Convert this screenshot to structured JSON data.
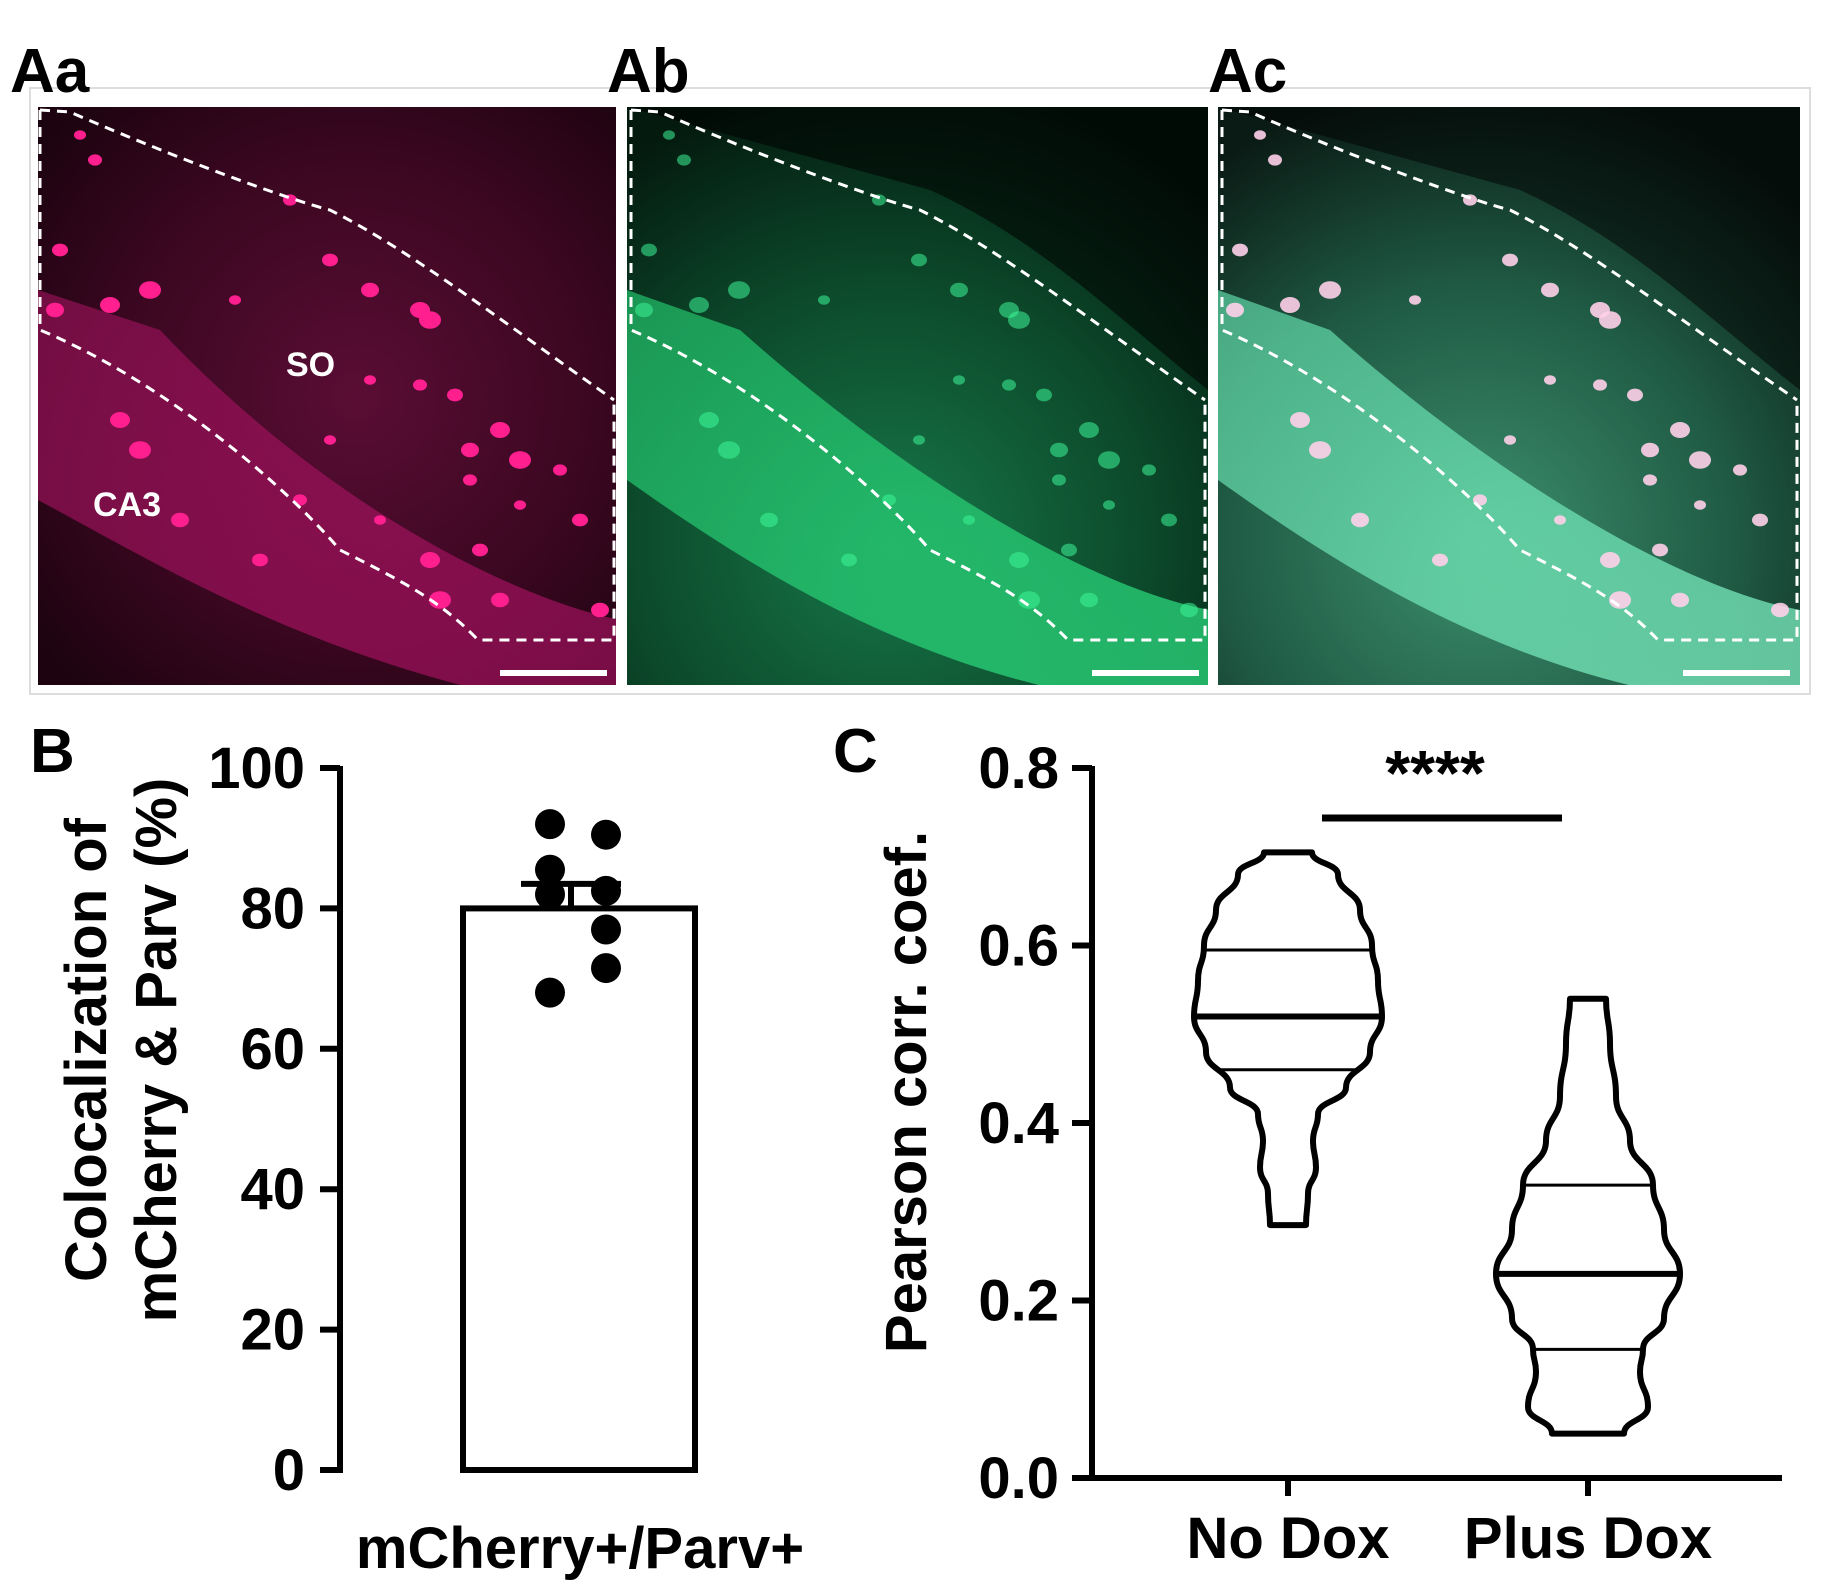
{
  "panels": {
    "aa": {
      "label": "Aa",
      "region_so": "SO",
      "region_ca3": "CA3",
      "color": "#e0127c"
    },
    "ab": {
      "label": "Ab",
      "color": "#1ee67e"
    },
    "ac": {
      "label": "Ac"
    },
    "b": {
      "label": "B"
    },
    "c": {
      "label": "C"
    }
  },
  "chart_data": [
    {
      "type": "bar",
      "panel": "B",
      "categories": [
        "mCherry+/Parv+"
      ],
      "values": [
        80
      ],
      "error_sem": [
        3.5
      ],
      "points": [
        92,
        90.5,
        85.5,
        82.5,
        82,
        77,
        71.5,
        68
      ],
      "ylabel_line1": "Colocalization of",
      "ylabel_line2": "mCherry & Parv (%)",
      "xlabel": "mCherry+/Parv+",
      "ylim": [
        0,
        100
      ],
      "yticks": [
        "0",
        "20",
        "40",
        "60",
        "80",
        "100"
      ]
    },
    {
      "type": "violin",
      "panel": "C",
      "categories": [
        "No Dox",
        "Plus Dox"
      ],
      "series": [
        {
          "name": "No Dox",
          "min": 0.285,
          "max": 0.705,
          "q1": 0.46,
          "median": 0.52,
          "q3": 0.595
        },
        {
          "name": "Plus Dox",
          "min": 0.05,
          "max": 0.54,
          "q1": 0.145,
          "median": 0.23,
          "q3": 0.33
        }
      ],
      "ylabel": "Pearson corr. coef.",
      "ylim": [
        0,
        0.8
      ],
      "yticks": [
        "0.0",
        "0.2",
        "0.4",
        "0.6",
        "0.8"
      ],
      "significance": "****"
    }
  ]
}
